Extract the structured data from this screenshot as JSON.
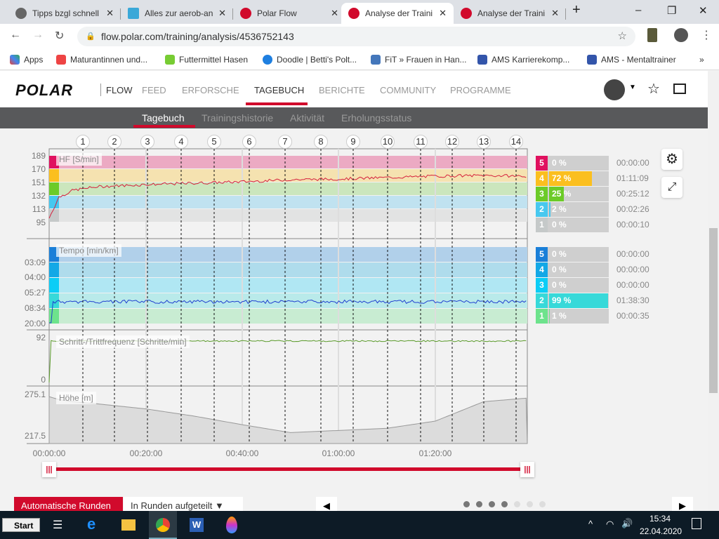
{
  "browser": {
    "tabs": [
      {
        "title": "Tipps bzgl schnell",
        "icon": "globe-icon",
        "active": false
      },
      {
        "title": "Alles zur aerob-an",
        "icon": "rw-icon",
        "active": false
      },
      {
        "title": "Polar Flow",
        "icon": "polar-icon",
        "active": false
      },
      {
        "title": "Analyse der Traini",
        "icon": "polar-icon",
        "active": true
      },
      {
        "title": "Analyse der Traini",
        "icon": "polar-icon",
        "active": false
      }
    ],
    "url": "flow.polar.com/training/analysis/4536752143",
    "bookmarks": [
      "Apps",
      "Maturantinnen und...",
      "Futtermittel Hasen",
      "Doodle | Betti's Polt...",
      "FiT » Frauen in Han...",
      "AMS Karrierekomp...",
      "AMS - Mentaltrainer"
    ],
    "bookmarks_more": "»"
  },
  "nav": {
    "logo": "POLAR",
    "items": [
      "FLOW",
      "FEED",
      "ERFORSCHE",
      "TAGEBUCH",
      "BERICHTE",
      "COMMUNITY",
      "PROGRAMME"
    ],
    "active": "TAGEBUCH"
  },
  "subnav": {
    "items": [
      "Tagebuch",
      "Trainingshistorie",
      "Aktivität",
      "Erholungsstatus"
    ],
    "active": "Tagebuch"
  },
  "laps": [
    "1",
    "2",
    "3",
    "4",
    "5",
    "6",
    "7",
    "8",
    "9",
    "10",
    "11",
    "12",
    "13",
    "14"
  ],
  "panels": {
    "hr": {
      "label": "HF [S/min]",
      "ticks": [
        "189",
        "170",
        "151",
        "132",
        "113",
        "95"
      ]
    },
    "pace": {
      "label": "Tempo [min/km]",
      "ticks": [
        "03:09",
        "04:00",
        "05:27",
        "08:34",
        "20:00"
      ]
    },
    "cadence": {
      "label": "Schritt-/Trittfrequenz [Schritte/min]",
      "ticks": [
        "92",
        "0"
      ]
    },
    "elevation": {
      "label": "Höhe [m]",
      "ticks": [
        "275.1",
        "217.5"
      ]
    }
  },
  "time_axis": [
    "00:00:00",
    "00:20:00",
    "00:40:00",
    "01:00:00",
    "01:20:00"
  ],
  "hr_zones": [
    {
      "zone": "5",
      "percent": "0 %",
      "fraction": 0,
      "time": "00:00:00",
      "color": "#e0115f"
    },
    {
      "zone": "4",
      "percent": "72 %",
      "fraction": 0.72,
      "time": "01:11:09",
      "color": "#fbbf1f"
    },
    {
      "zone": "3",
      "percent": "25 %",
      "fraction": 0.25,
      "time": "00:25:12",
      "color": "#6ccb28"
    },
    {
      "zone": "2",
      "percent": "2 %",
      "fraction": 0.02,
      "time": "00:02:26",
      "color": "#47c8ef"
    },
    {
      "zone": "1",
      "percent": "0 %",
      "fraction": 0,
      "time": "00:00:10",
      "color": "#c5c9c9"
    }
  ],
  "pace_zones": [
    {
      "zone": "5",
      "percent": "0 %",
      "fraction": 0,
      "time": "00:00:00",
      "color": "#1a7fd8"
    },
    {
      "zone": "4",
      "percent": "0 %",
      "fraction": 0,
      "time": "00:00:00",
      "color": "#13a8e6"
    },
    {
      "zone": "3",
      "percent": "0 %",
      "fraction": 0,
      "time": "00:00:00",
      "color": "#0ccdf6"
    },
    {
      "zone": "2",
      "percent": "99 %",
      "fraction": 0.99,
      "time": "01:38:30",
      "color": "#37d9d9"
    },
    {
      "zone": "1",
      "percent": "1 %",
      "fraction": 0.01,
      "time": "00:00:35",
      "color": "#6de38c"
    }
  ],
  "chart_data": {
    "type": "line",
    "x_unit": "minutes",
    "x": [
      0,
      2,
      5,
      10,
      20,
      30,
      40,
      50,
      60,
      70,
      80,
      90,
      99
    ],
    "series": [
      {
        "name": "HF [S/min]",
        "values": [
          100,
          130,
          140,
          145,
          148,
          150,
          152,
          155,
          156,
          158,
          160,
          161,
          160
        ]
      },
      {
        "name": "Höhe [m]",
        "values": [
          272,
          268,
          265,
          262,
          255,
          245,
          233,
          222,
          225,
          228,
          238,
          265,
          270
        ]
      }
    ]
  },
  "controls": {
    "laps_button": "Automatische Runden",
    "laps_select": "In Runden aufgeteilt",
    "pager_dots": 7,
    "pager_active": 4
  },
  "taskbar": {
    "start": "Start",
    "time": "15:34",
    "date": "22.04.2020"
  }
}
